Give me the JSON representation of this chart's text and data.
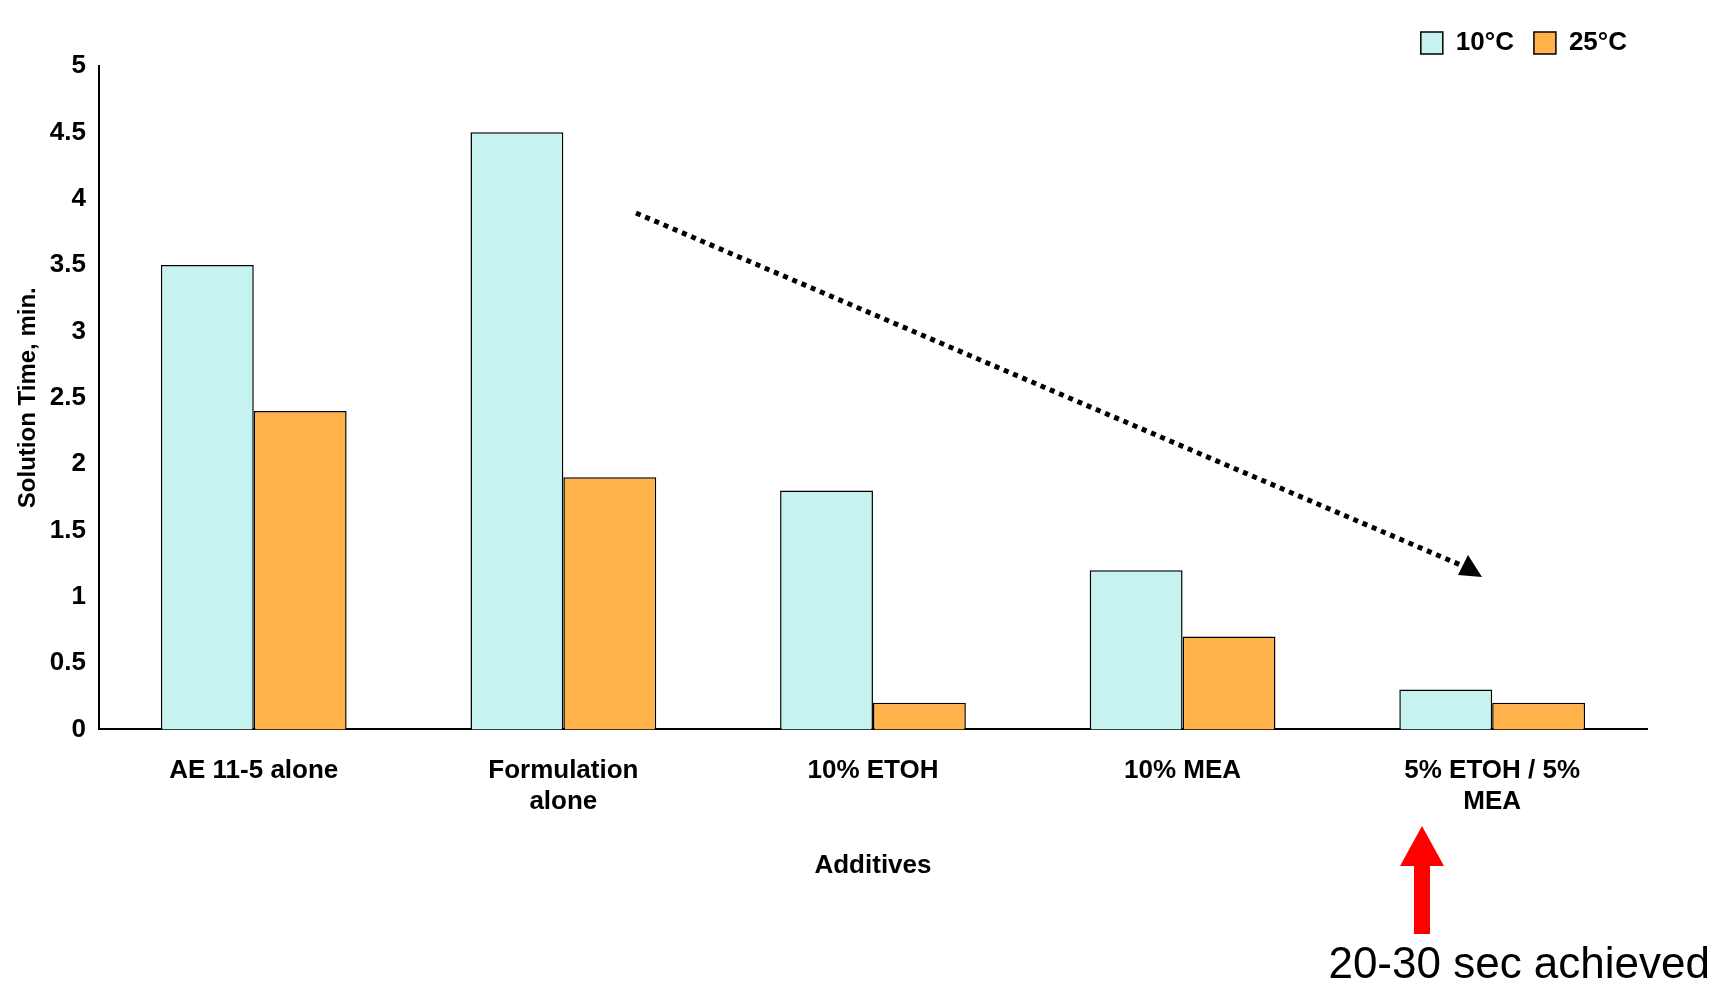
{
  "chart_data": {
    "type": "bar",
    "categories": [
      "AE 11-5 alone",
      "Formulation alone",
      "10% ETOH",
      "10% MEA",
      "5% ETOH /  5% MEA"
    ],
    "series": [
      {
        "name": "10°C",
        "color": "#c6f2f0",
        "values": [
          3.5,
          4.5,
          1.8,
          1.2,
          0.3
        ]
      },
      {
        "name": "25°C",
        "color": "#ffb14a",
        "values": [
          2.4,
          1.9,
          0.2,
          0.7,
          0.2
        ]
      }
    ],
    "xlabel": "Additives",
    "ylabel": "Solution Time, min.",
    "ylim": [
      0,
      5
    ],
    "yticks": [
      0,
      0.5,
      1,
      1.5,
      2,
      2.5,
      3,
      3.5,
      4,
      4.5,
      5
    ],
    "grid": false,
    "legend": "top right",
    "annotations": [
      "20-30 sec achieved"
    ]
  }
}
